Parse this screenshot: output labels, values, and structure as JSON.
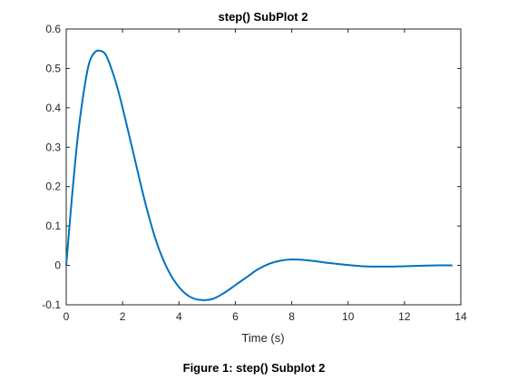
{
  "chart_data": {
    "type": "line",
    "title": "step() SubPlot 2",
    "xlabel": "Time (s)",
    "ylabel": "",
    "xlim": [
      0,
      14
    ],
    "ylim": [
      -0.1,
      0.6
    ],
    "xticks": [
      0,
      2,
      4,
      6,
      8,
      10,
      12,
      14
    ],
    "yticks": [
      -0.1,
      0,
      0.1,
      0.2,
      0.3,
      0.4,
      0.5,
      0.6
    ],
    "xtick_labels": [
      "0",
      "2",
      "4",
      "6",
      "8",
      "10",
      "12",
      "14"
    ],
    "ytick_labels": [
      "-0.1",
      "0",
      "0.1",
      "0.2",
      "0.3",
      "0.4",
      "0.5",
      "0.6"
    ],
    "grid": false,
    "line_color": "#0072BD",
    "series": [
      {
        "x": [
          0,
          0.2,
          0.4,
          0.6,
          0.8,
          1.0,
          1.2,
          1.4,
          1.6,
          1.8,
          2.0,
          2.4,
          2.8,
          3.2,
          3.6,
          4.0,
          4.4,
          4.8,
          5.2,
          5.6,
          6.0,
          6.4,
          6.8,
          7.2,
          7.6,
          8.0,
          8.4,
          8.8,
          9.2,
          9.6,
          10.0,
          10.5,
          11.0,
          11.5,
          12.0,
          12.5,
          13.0,
          13.7
        ],
        "y": [
          0,
          0.17,
          0.32,
          0.43,
          0.51,
          0.54,
          0.545,
          0.535,
          0.5,
          0.455,
          0.4,
          0.28,
          0.16,
          0.06,
          -0.01,
          -0.055,
          -0.08,
          -0.088,
          -0.085,
          -0.07,
          -0.05,
          -0.03,
          -0.01,
          0.004,
          0.012,
          0.015,
          0.014,
          0.011,
          0.007,
          0.004,
          0.001,
          -0.002,
          -0.003,
          -0.003,
          -0.002,
          -0.001,
          0.0,
          0.0
        ]
      }
    ]
  },
  "caption": "Figure 1: step() Subplot 2"
}
